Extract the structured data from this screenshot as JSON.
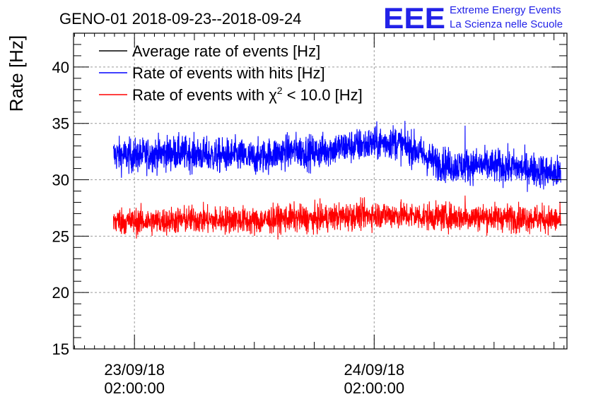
{
  "chart_data": {
    "type": "line",
    "title": "GENO-01 2018-09-23--2018-09-24",
    "ylabel": "Rate [Hz]",
    "xlabel": "",
    "ylim": [
      15,
      43
    ],
    "y_ticks": [
      15,
      20,
      25,
      30,
      35,
      40
    ],
    "x_ticks": [
      {
        "date": "23/09/18",
        "time": "02:00:00",
        "hours": 2
      },
      {
        "date": "24/09/18",
        "time": "02:00:00",
        "hours": 26
      }
    ],
    "x_start_hours": -4.1,
    "x_end_hours": 45.3,
    "data_start_hours": -0.1,
    "data_end_hours": 44.7,
    "grid": true,
    "legend_position": "top-left",
    "series": [
      {
        "name": "Average rate of events [Hz]",
        "color": "#000000",
        "x_hours": [],
        "values": []
      },
      {
        "name": "Rate of events with hits [Hz]",
        "color": "#0000ff",
        "x_hours": [
          0,
          2,
          4,
          6,
          8,
          10,
          12,
          14,
          16,
          18,
          20,
          22,
          24,
          26,
          28,
          30,
          32,
          34,
          36,
          38,
          40,
          42,
          44.7
        ],
        "values": [
          32.2,
          32.1,
          32.3,
          32.4,
          32.3,
          32.1,
          32.2,
          31.9,
          32.3,
          32.6,
          32.4,
          32.8,
          33.0,
          33.2,
          33.4,
          32.7,
          31.6,
          31.2,
          31.3,
          31.2,
          31.1,
          30.9,
          30.5
        ]
      },
      {
        "name": "Rate of events with χ² < 10.0 [Hz]",
        "name_parts": {
          "pre": "Rate of events with ",
          "chi": "χ",
          "sup": "2",
          "post": " < 10.0 [Hz]"
        },
        "color": "#ff0000",
        "x_hours": [
          0,
          2,
          4,
          6,
          8,
          10,
          12,
          14,
          16,
          18,
          20,
          22,
          24,
          26,
          28,
          30,
          32,
          34,
          36,
          38,
          40,
          42,
          44.7
        ],
        "values": [
          26.4,
          26.3,
          26.3,
          26.4,
          26.5,
          26.4,
          26.5,
          26.3,
          26.5,
          26.6,
          26.5,
          26.7,
          26.8,
          26.9,
          26.9,
          26.8,
          26.7,
          26.7,
          26.7,
          26.7,
          26.6,
          26.6,
          26.4
        ]
      }
    ],
    "spikes": [
      {
        "series": 1,
        "hours": 35.1,
        "value": 34.8
      },
      {
        "series": 2,
        "hours": 35.1,
        "value": 28.6
      }
    ],
    "noise_amplitude": {
      "blue": 0.75,
      "red": 0.6
    }
  },
  "logo": {
    "text": "EEE",
    "line1": "Extreme Energy Events",
    "line2": "La Scienza nelle Scuole",
    "color": "#2222e8"
  }
}
